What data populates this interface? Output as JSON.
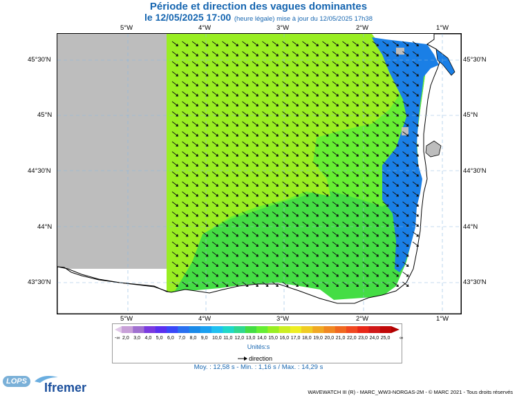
{
  "title": "Période et direction des vagues dominantes",
  "subtitle_main": "le 12/05/2025 17:00",
  "subtitle_detail": "(heure légale) mise à jour du 12/05/2025 17h38",
  "map": {
    "lon_labels": [
      "5°W",
      "4°W",
      "3°W",
      "2°W",
      "1°W"
    ],
    "lat_labels": [
      "45°30'N",
      "45°N",
      "44°30'N",
      "44°N",
      "43°30'N"
    ],
    "colors": {
      "land": "#ffffff",
      "no_data": "#bdbdbd",
      "period_12": "#44dd44",
      "period_13": "#66ee33",
      "period_14": "#99ee22",
      "period_11": "#33cc55",
      "period_8": "#1a7fe6",
      "period_9": "#1a9fee",
      "coast": "#000000"
    }
  },
  "legend": {
    "left_symbol": "-∞",
    "right_symbol": "∞",
    "ticks": [
      "2,0",
      "3,0",
      "4,0",
      "5,0",
      "6,0",
      "7,0",
      "8,0",
      "9,0",
      "10,0",
      "11,0",
      "12,0",
      "13,0",
      "14,0",
      "15,0",
      "16,0",
      "17,0",
      "18,0",
      "19,0",
      "20,0",
      "21,0",
      "22,0",
      "23,0",
      "24,0",
      "25,0"
    ],
    "colors": [
      "#c8a0d8",
      "#a070d0",
      "#7a3ae0",
      "#5a30f0",
      "#3a48f8",
      "#2a70f0",
      "#1a8ae8",
      "#1aa0f0",
      "#20c0f0",
      "#20d8c8",
      "#30d890",
      "#44dd44",
      "#66ee33",
      "#99ee22",
      "#ccee22",
      "#eeee22",
      "#f0cc22",
      "#f0a822",
      "#f08822",
      "#f06820",
      "#f04820",
      "#e82818",
      "#d01818",
      "#c00808"
    ],
    "unit": "Unités:s",
    "direction_label": "direction"
  },
  "stats": "Moy. : 12,58 s   -   Min. : 1,16 s / Max. : 14,29 s",
  "footer": "WAVEWATCH III (R) - MARC_WW3-NORGAS-2M - © MARC 2021 - Tous droits réservés",
  "logos": {
    "lops": "LOPS",
    "ifremer": "Ifremer"
  }
}
